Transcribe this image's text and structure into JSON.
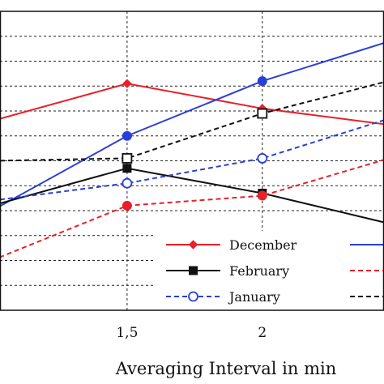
{
  "chart_data": {
    "type": "line",
    "xlabel": "Averaging Interval in min",
    "x_ticks": [
      1,
      1.5,
      2,
      2.5
    ],
    "x_tick_labels": [
      "",
      "1,5",
      "2",
      ""
    ],
    "xlim": [
      1.03,
      2.45
    ],
    "ylim": [
      0,
      12
    ],
    "grid": true,
    "legend_position": "bottom-right",
    "series": [
      {
        "name": "December",
        "color": "#e8202a",
        "dash": "solid",
        "marker": "diamond-filled",
        "x": [
          1,
          1.5,
          2,
          2.5
        ],
        "y": [
          7.6,
          9.1,
          8.1,
          7.4
        ]
      },
      {
        "name": "",
        "color": "#2a3fd9",
        "dash": "solid",
        "marker": "circle-filled",
        "x": [
          1,
          1.5,
          2,
          2.5
        ],
        "y": [
          4.0,
          7.0,
          9.2,
          10.9
        ]
      },
      {
        "name": "February",
        "color": "#111111",
        "dash": "solid",
        "marker": "square-filled",
        "x": [
          1,
          1.5,
          2,
          2.5
        ],
        "y": [
          4.2,
          5.7,
          4.7,
          3.4
        ]
      },
      {
        "name": "",
        "color": "#e8202a",
        "dash": "dashed",
        "marker": "circle-filled",
        "x": [
          1,
          1.5,
          2,
          2.5
        ],
        "y": [
          2.0,
          4.2,
          4.6,
          6.2
        ]
      },
      {
        "name": "January",
        "color": "#2a3fd9",
        "dash": "dashed",
        "marker": "circle-open",
        "x": [
          1,
          1.5,
          2,
          2.5
        ],
        "y": [
          4.4,
          5.1,
          6.1,
          7.8
        ]
      },
      {
        "name": "",
        "color": "#111111",
        "dash": "dashed",
        "marker": "square-open",
        "x": [
          1,
          1.5,
          2,
          2.5
        ],
        "y": [
          6.0,
          6.1,
          7.9,
          9.3
        ]
      }
    ]
  }
}
